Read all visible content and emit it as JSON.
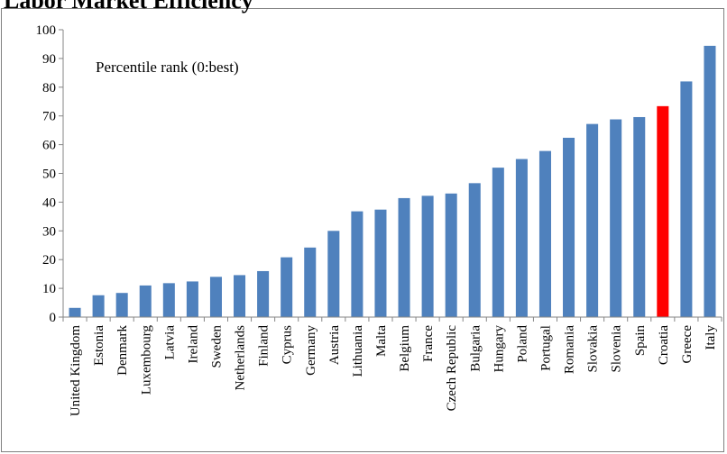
{
  "chart_data": {
    "type": "bar",
    "title": "Labor Market Efficiency",
    "annotation": "Percentile rank (0:best)",
    "categories": [
      "United Kingdom",
      "Estonia",
      "Denmark",
      "Luxembourg",
      "Latvia",
      "Ireland",
      "Sweden",
      "Netherlands",
      "Finland",
      "Cyprus",
      "Germany",
      "Austria",
      "Lithuania",
      "Malta",
      "Belgium",
      "France",
      "Czech Republic",
      "Bulgaria",
      "Hungary",
      "Poland",
      "Portugal",
      "Romania",
      "Slovakia",
      "Slovenia",
      "Spain",
      "Croatia",
      "Greece",
      "Italy"
    ],
    "values": [
      3.2,
      7.6,
      8.4,
      11.0,
      11.8,
      12.4,
      14.0,
      14.6,
      16.0,
      20.8,
      24.2,
      30.0,
      36.8,
      37.4,
      41.4,
      42.2,
      43.0,
      46.6,
      52.0,
      55.0,
      57.8,
      62.4,
      67.2,
      68.8,
      69.6,
      73.4,
      82.0,
      94.4
    ],
    "ylim": [
      0,
      100
    ],
    "yticks": [
      0,
      10,
      20,
      30,
      40,
      50,
      60,
      70,
      80,
      90,
      100
    ],
    "xlabel": "",
    "ylabel": "",
    "grid": false,
    "legend": "none",
    "bar_color": "#4f81bd",
    "highlight": {
      "category": "Croatia",
      "color": "#ff0000"
    }
  }
}
